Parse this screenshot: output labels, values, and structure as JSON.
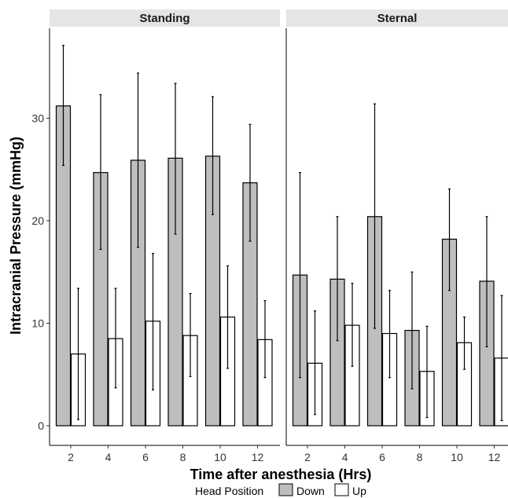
{
  "chart_data": {
    "type": "bar",
    "xlabel": "Time after anesthesia (Hrs)",
    "ylabel": "Intracranial Pressure (mmHg)",
    "ylim": [
      0,
      38
    ],
    "yticks": [
      "0",
      "10",
      "20",
      "30"
    ],
    "categories": [
      "2",
      "4",
      "6",
      "8",
      "10",
      "12"
    ],
    "legend": {
      "title": "Head Position",
      "position": "bottom",
      "entries": [
        {
          "name": "Down",
          "color": "#bebebe"
        },
        {
          "name": "Up",
          "color": "#ffffff"
        }
      ]
    },
    "panels": [
      {
        "title": "Standing",
        "series": [
          {
            "name": "Down",
            "values": [
              31.2,
              24.7,
              25.9,
              26.1,
              26.3,
              23.7
            ],
            "error_low": [
              25.4,
              17.2,
              17.4,
              18.7,
              20.6,
              18.0
            ],
            "error_high": [
              37.1,
              32.3,
              34.4,
              33.4,
              32.1,
              29.4
            ]
          },
          {
            "name": "Up",
            "values": [
              7.0,
              8.5,
              10.2,
              8.8,
              10.6,
              8.4
            ],
            "error_low": [
              0.6,
              3.7,
              3.5,
              4.8,
              5.6,
              4.7
            ],
            "error_high": [
              13.4,
              13.4,
              16.8,
              12.9,
              15.6,
              12.2
            ]
          }
        ]
      },
      {
        "title": "Sternal",
        "series": [
          {
            "name": "Down",
            "values": [
              14.7,
              14.3,
              20.4,
              9.3,
              18.2,
              14.1
            ],
            "error_low": [
              4.7,
              8.3,
              9.5,
              3.6,
              13.2,
              7.7
            ],
            "error_high": [
              24.7,
              20.4,
              31.4,
              15.0,
              23.1,
              20.4
            ]
          },
          {
            "name": "Up",
            "values": [
              6.1,
              9.8,
              9.0,
              5.3,
              8.1,
              6.6
            ],
            "error_low": [
              1.1,
              5.8,
              4.7,
              0.8,
              5.5,
              0.5
            ],
            "error_high": [
              11.2,
              13.9,
              13.2,
              9.7,
              10.6,
              12.7
            ]
          }
        ]
      }
    ]
  }
}
